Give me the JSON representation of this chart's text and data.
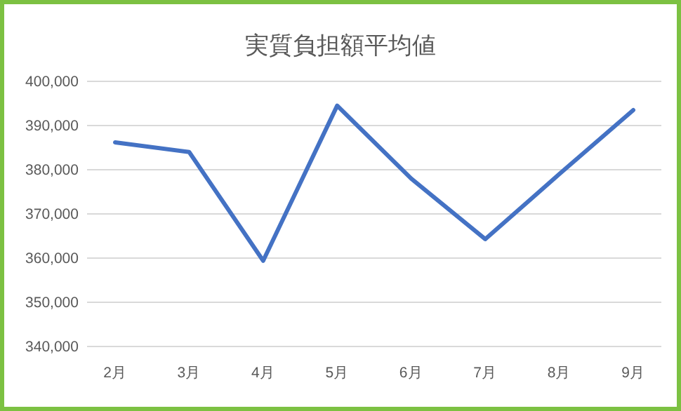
{
  "chart_data": {
    "type": "line",
    "title": "実質負担額平均値",
    "categories": [
      "2月",
      "3月",
      "4月",
      "5月",
      "6月",
      "7月",
      "8月",
      "9月"
    ],
    "series": [
      {
        "color": "#4472c4",
        "values": [
          386200,
          384000,
          359400,
          394500,
          378000,
          364300,
          379000,
          393500
        ]
      }
    ],
    "ylim": [
      340000,
      400000
    ],
    "yticks": [
      {
        "value": 340000,
        "label": "340,000"
      },
      {
        "value": 350000,
        "label": "350,000"
      },
      {
        "value": 360000,
        "label": "360,000"
      },
      {
        "value": 370000,
        "label": "370,000"
      },
      {
        "value": 380000,
        "label": "380,000"
      },
      {
        "value": 390000,
        "label": "390,000"
      },
      {
        "value": 400000,
        "label": "400,000"
      }
    ],
    "grid": "y",
    "marker": "none"
  }
}
